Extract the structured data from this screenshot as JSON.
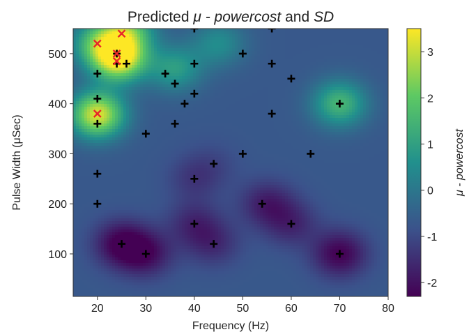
{
  "chart_data": {
    "type": "heatmap",
    "title_parts": [
      {
        "text": "Predicted ",
        "italic": false
      },
      {
        "text": "μ - powercost",
        "italic": true
      },
      {
        "text": " and ",
        "italic": false
      },
      {
        "text": "SD",
        "italic": true
      }
    ],
    "xlabel": "Frequency (Hz)",
    "ylabel": "Pulse Width (μSec)",
    "colorbar_label": "μ - powercost",
    "xlim": [
      15,
      80
    ],
    "ylim": [
      15,
      550
    ],
    "x_ticks": [
      20,
      30,
      40,
      50,
      60,
      70,
      80
    ],
    "y_ticks": [
      100,
      200,
      300,
      400,
      500
    ],
    "colorbar_range": [
      -2.3,
      3.5
    ],
    "colorbar_ticks": [
      3,
      2,
      1,
      0,
      -1,
      -2
    ],
    "colormap": [
      "#440154",
      "#3b528b",
      "#21908d",
      "#5dc963",
      "#fde725"
    ],
    "surface": {
      "base": -0.7,
      "highs": [
        {
          "x": 24.5,
          "y": 490,
          "value": 3.4
        },
        {
          "x": 20,
          "y": 378,
          "value": 3.2
        },
        {
          "x": 70,
          "y": 400,
          "value": 1.5
        },
        {
          "x": 26,
          "y": 545,
          "value": 1.8
        },
        {
          "x": 20,
          "y": 520,
          "value": 1.3
        },
        {
          "x": 36,
          "y": 470,
          "value": 0.9
        },
        {
          "x": 45,
          "y": 520,
          "value": 0.5
        }
      ],
      "lows": [
        {
          "x": 25,
          "y": 120,
          "value": -2.3
        },
        {
          "x": 30,
          "y": 100,
          "value": -2.0
        },
        {
          "x": 70,
          "y": 100,
          "value": -2.3
        },
        {
          "x": 55,
          "y": 200,
          "value": -1.8
        },
        {
          "x": 60,
          "y": 160,
          "value": -1.6
        },
        {
          "x": 40,
          "y": 160,
          "value": -1.6
        },
        {
          "x": 44,
          "y": 120,
          "value": -1.5
        },
        {
          "x": 40,
          "y": 250,
          "value": -1.3
        },
        {
          "x": 44,
          "y": 280,
          "value": -1.0
        }
      ]
    },
    "series": [
      {
        "marker": "plus",
        "color": "#000000",
        "points": [
          [
            20,
            460
          ],
          [
            20,
            410
          ],
          [
            20,
            360
          ],
          [
            20,
            260
          ],
          [
            20,
            200
          ],
          [
            24,
            500
          ],
          [
            24,
            480
          ],
          [
            26,
            480
          ],
          [
            25,
            120
          ],
          [
            30,
            340
          ],
          [
            30,
            100
          ],
          [
            34,
            460
          ],
          [
            36,
            440
          ],
          [
            36,
            360
          ],
          [
            38,
            400
          ],
          [
            40,
            480
          ],
          [
            40,
            420
          ],
          [
            40,
            250
          ],
          [
            40,
            160
          ],
          [
            40,
            550
          ],
          [
            44,
            280
          ],
          [
            44,
            120
          ],
          [
            50,
            500
          ],
          [
            50,
            300
          ],
          [
            54,
            200
          ],
          [
            56,
            480
          ],
          [
            56,
            380
          ],
          [
            56,
            550
          ],
          [
            60,
            450
          ],
          [
            60,
            160
          ],
          [
            64,
            300
          ],
          [
            70,
            400
          ],
          [
            70,
            100
          ]
        ]
      },
      {
        "marker": "x",
        "color": "#e8262a",
        "points": [
          [
            20,
            520
          ],
          [
            25,
            540
          ],
          [
            24,
            500
          ],
          [
            24,
            485
          ],
          [
            20,
            380
          ]
        ]
      }
    ]
  }
}
